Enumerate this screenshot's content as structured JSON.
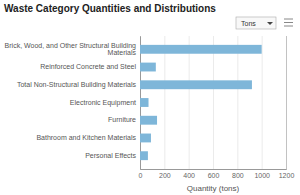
{
  "chart_data": {
    "type": "bar",
    "orientation": "horizontal",
    "title": "Waste Category Quantities and Distributions",
    "categories": [
      "Personal Effects",
      "Bathroom and Kitchen Materials",
      "Furniture",
      "Electronic Equipment",
      "Total Non-Structural Building Materials",
      "Reinforced Concrete and Steel",
      "Brick, Wood, and Other Structural Building\nMaterials"
    ],
    "values": [
      65,
      90,
      140,
      70,
      920,
      130,
      1000
    ],
    "color": "#7EB6D9",
    "xlabel": "Quantity (tons)",
    "xlim": [
      0,
      1200
    ],
    "xticks": [
      0,
      200,
      400,
      600,
      800,
      1000,
      1200
    ],
    "grid": true,
    "annotations": [
      "Tons"
    ]
  }
}
